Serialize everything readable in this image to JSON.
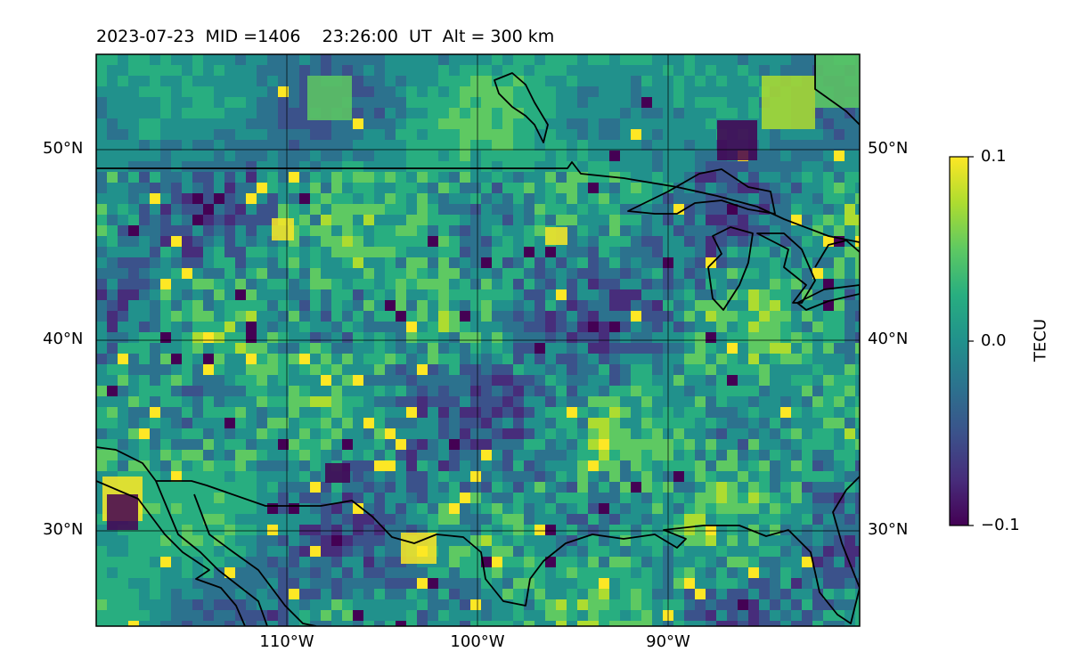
{
  "title": {
    "date": "2023-07-23",
    "mid": "MID =1406",
    "time": "23:26:00  UT",
    "alt": "Alt = 300 km"
  },
  "axes": {
    "lat_ticks": [
      "50°N",
      "40°N",
      "30°N"
    ],
    "lon_ticks": [
      "110°W",
      "100°W",
      "90°W"
    ]
  },
  "colorbar": {
    "label": "TECU",
    "ticks": [
      "0.1",
      "0.0",
      "−0.1"
    ],
    "range": [
      -0.1,
      0.1
    ],
    "colormap": "viridis"
  },
  "map": {
    "lon_range": [
      -120,
      -80
    ],
    "lat_range": [
      25,
      55
    ],
    "grid": true,
    "colors": {
      "coastline": "#000000",
      "gridline": "#000000"
    }
  }
}
